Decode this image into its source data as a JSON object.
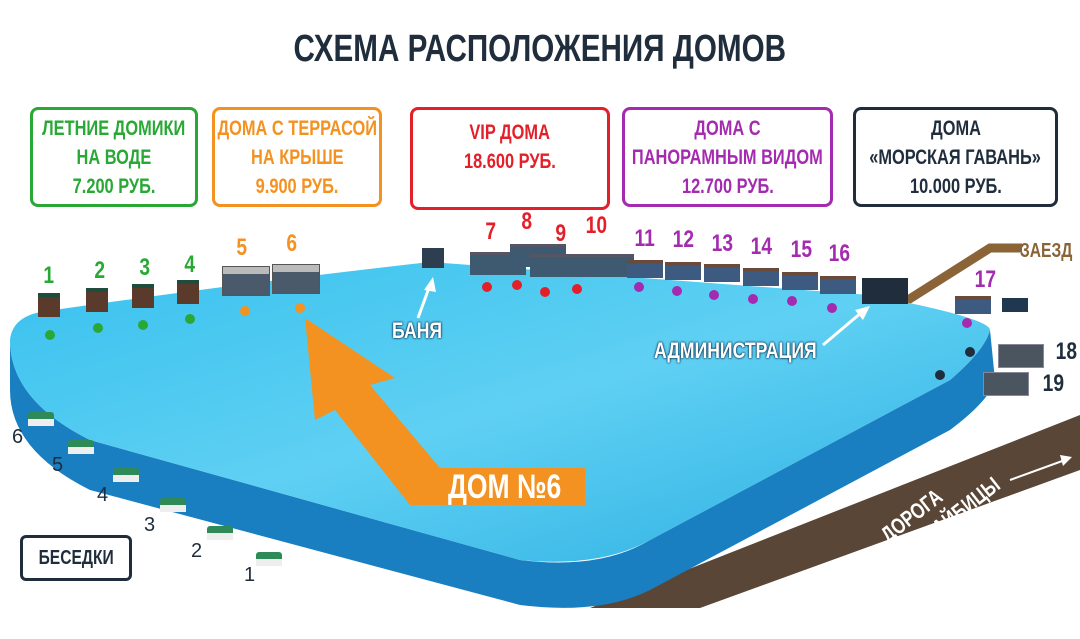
{
  "title": "СХЕМА РАСПОЛОЖЕНИЯ ДОМОВ",
  "categories": [
    {
      "lines": [
        "ЛЕТНИЕ ДОМИКИ",
        "НА ВОДЕ",
        "7.200 РУБ."
      ],
      "color": "#2aa836"
    },
    {
      "lines": [
        "ДОМА С ТЕРРАСОЙ",
        "НА КРЫШЕ",
        "9.900 РУБ."
      ],
      "color": "#f39221"
    },
    {
      "lines": [
        "VIP ДОМА",
        "18.600 РУБ."
      ],
      "color": "#e3202a"
    },
    {
      "lines": [
        "ДОМА С",
        "ПАНОРАМНЫМ ВИДОМ",
        "12.700 РУБ."
      ],
      "color": "#a42bb0"
    },
    {
      "lines": [
        "ДОМА",
        "«МОРСКАЯ ГАВАНЬ»",
        "10.000 РУБ."
      ],
      "color": "#1f2d3d"
    }
  ],
  "houses": [
    "1",
    "2",
    "3",
    "4",
    "5",
    "6",
    "7",
    "8",
    "9",
    "10",
    "11",
    "12",
    "13",
    "14",
    "15",
    "16",
    "17",
    "18",
    "19"
  ],
  "labels": {
    "banya": "БАНЯ",
    "admin": "АДМИНИСТРАЦИЯ",
    "entry": "ЗАЕЗД",
    "house6": "ДОМ №6",
    "gazebos": "БЕСЕДКИ",
    "road_line1": "ДОРОГА",
    "road_line2": "КАЗАНЬ - КАЙБИЦЫ"
  },
  "gazebo_numbers": [
    "6",
    "5",
    "4",
    "3",
    "2",
    "1"
  ],
  "colors": {
    "water": "#2fb6e6",
    "water_side": "#1a7fc0",
    "road": "#5a4636",
    "entry_road": "#8a6336",
    "arrow": "#f39221",
    "title": "#1f2d3d"
  }
}
